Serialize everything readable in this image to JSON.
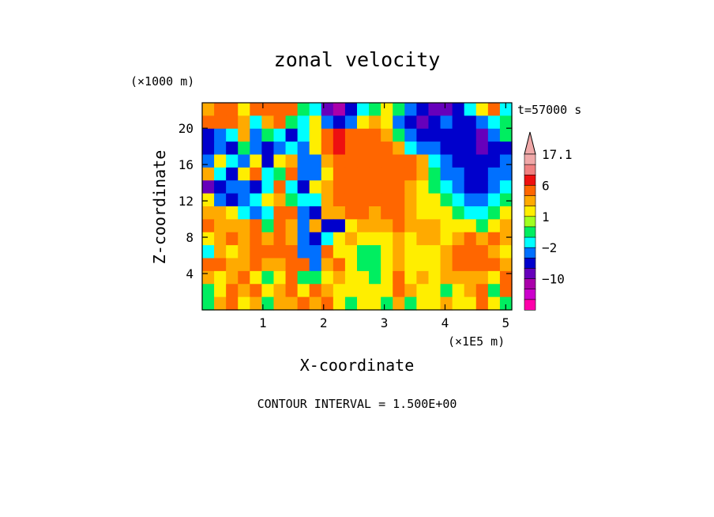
{
  "chart_data": {
    "type": "heatmap",
    "title": "zonal velocity",
    "xlabel": "X-coordinate",
    "ylabel": "Z-coordinate",
    "x_unit": "(×1E5 m)",
    "y_unit": "(×1000 m)",
    "time_label": "t=57000 s",
    "footer": "CONTOUR INTERVAL = 1.500E+00",
    "xlim": [
      0,
      5.1
    ],
    "ylim": [
      0,
      22.8
    ],
    "x_ticks": [
      1,
      2,
      3,
      4,
      5
    ],
    "x_tick_labels": [
      "1",
      "2",
      "3",
      "4",
      "5"
    ],
    "y_ticks": [
      4,
      8,
      12,
      16,
      20
    ],
    "y_tick_labels": [
      "4",
      "8",
      "12",
      "16",
      "20"
    ],
    "colorbar": {
      "labels": [
        {
          "value": 17.1,
          "text": "17.1"
        },
        {
          "value": 6,
          "text": "6"
        },
        {
          "value": 1,
          "text": "1"
        },
        {
          "value": -2,
          "text": "−2"
        },
        {
          "value": -10,
          "text": "−10"
        }
      ],
      "levels": [
        {
          "color": "#f0a8a8",
          "lo": 15.0,
          "hi": 17.1
        },
        {
          "color": "#f08080",
          "lo": 12.0,
          "hi": 15.0
        },
        {
          "color": "#ee1010",
          "lo": 6.0,
          "hi": 12.0
        },
        {
          "color": "#ff6600",
          "lo": 3.0,
          "hi": 6.0
        },
        {
          "color": "#ffaa00",
          "lo": 2.0,
          "hi": 3.0
        },
        {
          "color": "#ffee00",
          "lo": 1.0,
          "hi": 2.0
        },
        {
          "color": "#a0ff20",
          "lo": 0.0,
          "hi": 1.0
        },
        {
          "color": "#00ee60",
          "lo": -1.0,
          "hi": 0.0
        },
        {
          "color": "#00ffff",
          "lo": -2.0,
          "hi": -1.0
        },
        {
          "color": "#0070ff",
          "lo": -4.0,
          "hi": -2.0
        },
        {
          "color": "#0000cc",
          "lo": -7.0,
          "hi": -4.0
        },
        {
          "color": "#6600bb",
          "lo": -10.0,
          "hi": -7.0
        },
        {
          "color": "#aa00aa",
          "lo": -13.0,
          "hi": -10.0
        },
        {
          "color": "#cc00cc",
          "lo": -16.0,
          "hi": -13.0
        },
        {
          "color": "#ff00aa",
          "lo": -19.0,
          "hi": -16.0
        }
      ]
    },
    "grid": [
      [
        2,
        3,
        3,
        1,
        3,
        3,
        3,
        3,
        -1,
        -2,
        -9,
        -12,
        -6,
        -2,
        -1,
        1,
        -1,
        -3,
        -6,
        -9,
        -9,
        -6,
        -2,
        1,
        3,
        -2
      ],
      [
        3,
        5,
        4,
        2,
        -2,
        2,
        3,
        -1,
        -2,
        1,
        -3,
        -6,
        -4,
        1,
        2,
        1,
        -3,
        -6,
        -9,
        -6,
        -4,
        -5,
        -6,
        -3,
        -2,
        -1
      ],
      [
        -6,
        -3,
        -2,
        2,
        -4,
        -1,
        -2,
        -5,
        -2,
        1,
        5,
        6,
        5,
        4,
        4,
        2,
        -1,
        -3,
        -6,
        -7,
        -6,
        -5,
        -5,
        -8,
        -4,
        -1
      ],
      [
        -7,
        -3,
        -6,
        -1,
        -3,
        -5,
        -4,
        -2,
        -3,
        1,
        4,
        6,
        3,
        4,
        4,
        3,
        2,
        -2,
        -3,
        -4,
        -6,
        -7,
        -7,
        -9,
        -7,
        -5
      ],
      [
        -3,
        1,
        -2,
        -3,
        1,
        -6,
        1,
        2,
        -4,
        -3,
        2,
        3,
        4,
        3,
        4,
        5,
        4,
        3,
        2,
        -2,
        -3,
        -6,
        -7,
        -7,
        -5,
        -4
      ],
      [
        2,
        -2,
        -5,
        1,
        3,
        -2,
        -1,
        3,
        -3,
        -3,
        1,
        4,
        5,
        4,
        4,
        3,
        4,
        3,
        2,
        -1,
        -3,
        -4,
        -6,
        -5,
        -3,
        -4
      ],
      [
        -8,
        -5,
        -4,
        -3,
        -5,
        -2,
        3,
        -2,
        -7,
        1,
        2,
        4,
        4,
        4,
        5,
        4,
        3,
        2,
        1,
        -1,
        -2,
        -3,
        -5,
        -7,
        -4,
        -2
      ],
      [
        1,
        -3,
        -6,
        -4,
        -2,
        1,
        2,
        -1,
        -2,
        -2,
        2,
        3,
        3,
        3,
        4,
        4,
        3,
        2,
        1,
        1,
        -1,
        -2,
        -3,
        -4,
        -2,
        -1
      ],
      [
        2,
        2,
        1,
        -2,
        -4,
        -2,
        3,
        4,
        -4,
        -5,
        2,
        2,
        3,
        3,
        2,
        3,
        4,
        2,
        1,
        1,
        1,
        -1,
        -2,
        -2,
        -1,
        1
      ],
      [
        3,
        2,
        2,
        2,
        3,
        -1,
        3,
        2,
        -3,
        2,
        -7,
        -5,
        1,
        2,
        2,
        2,
        3,
        2,
        2,
        2,
        1,
        1,
        1,
        -1,
        1,
        2
      ],
      [
        1,
        2,
        3,
        2,
        3,
        2,
        3,
        2,
        -3,
        -6,
        -2,
        1,
        2,
        1,
        1,
        1,
        2,
        1,
        2,
        2,
        1,
        2,
        3,
        2,
        3,
        2
      ],
      [
        -2,
        2,
        1,
        2,
        4,
        3,
        3,
        4,
        -3,
        -3,
        3,
        1,
        1,
        -1,
        -1,
        1,
        2,
        1,
        1,
        1,
        2,
        4,
        4,
        3,
        2,
        1
      ],
      [
        3,
        3,
        2,
        2,
        3,
        2,
        2,
        4,
        3,
        -4,
        2,
        3,
        1,
        -1,
        -1,
        1,
        2,
        1,
        1,
        1,
        2,
        3,
        4,
        3,
        3,
        2
      ],
      [
        2,
        1,
        2,
        3,
        1,
        -1,
        1,
        4,
        -1,
        -1,
        1,
        2,
        1,
        1,
        -1,
        1,
        3,
        1,
        2,
        1,
        2,
        2,
        2,
        2,
        1,
        3
      ],
      [
        -1,
        1,
        3,
        2,
        3,
        1,
        2,
        3,
        1,
        4,
        2,
        1,
        1,
        1,
        1,
        1,
        3,
        2,
        1,
        1,
        -1,
        1,
        2,
        3,
        -1,
        3
      ],
      [
        -1,
        2,
        3,
        1,
        2,
        -1,
        2,
        2,
        3,
        2,
        3,
        1,
        -1,
        1,
        1,
        -1,
        2,
        -1,
        1,
        1,
        2,
        1,
        1,
        3,
        1,
        -1
      ]
    ]
  }
}
